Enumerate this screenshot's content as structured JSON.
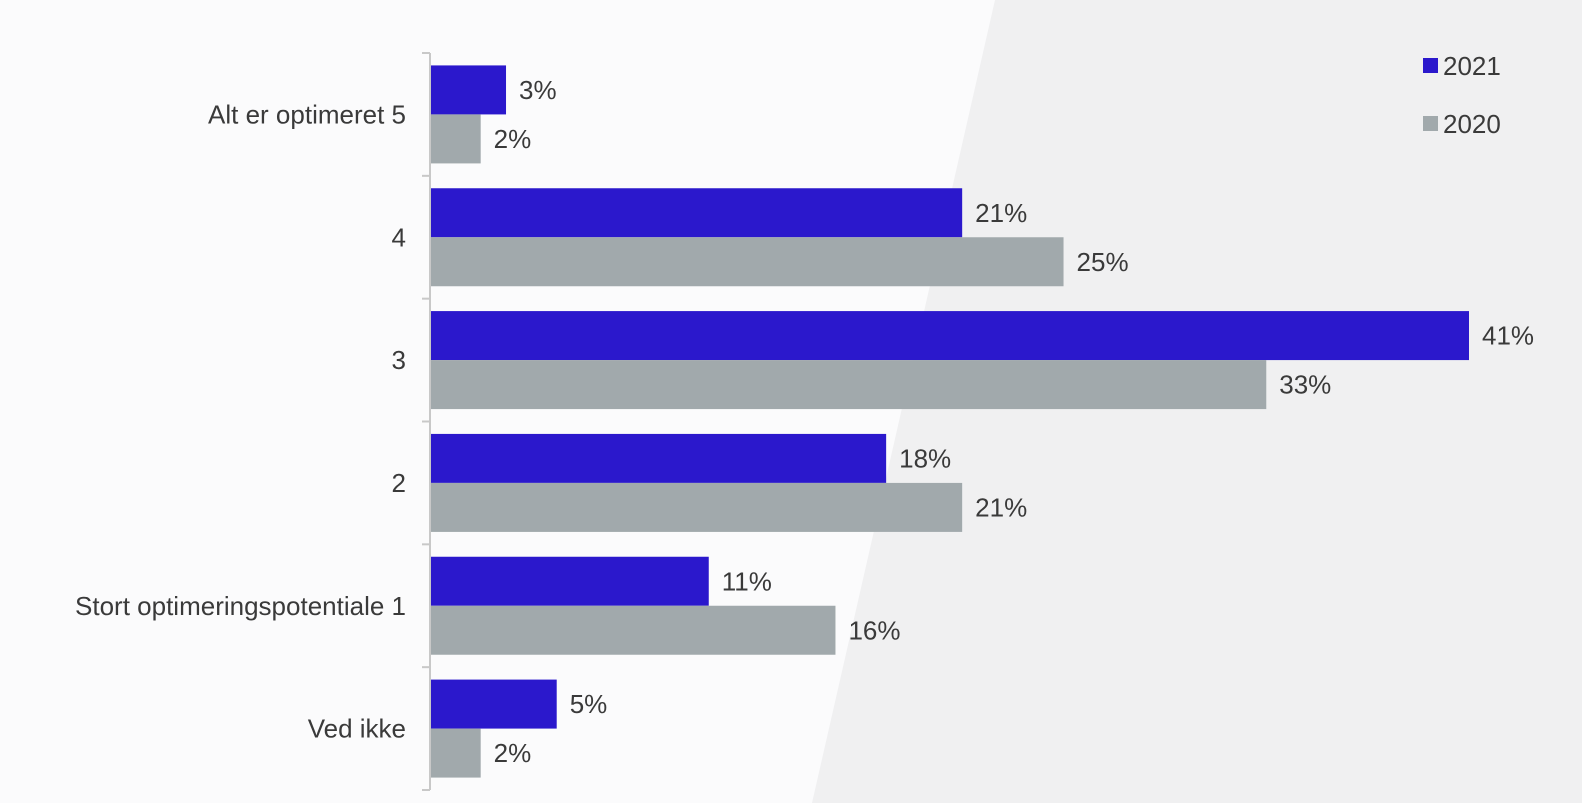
{
  "chart_data": {
    "type": "bar",
    "orientation": "horizontal",
    "categories": [
      "Alt er optimeret 5",
      "4",
      "3",
      "2",
      "Stort optimeringspotentiale 1",
      "Ved ikke"
    ],
    "series": [
      {
        "name": "2021",
        "color": "#2b18cc",
        "values": [
          3,
          21,
          41,
          18,
          11,
          5
        ],
        "labels": [
          "3%",
          "21%",
          "41%",
          "18%",
          "11%",
          "5%"
        ]
      },
      {
        "name": "2020",
        "color": "#a1a9ac",
        "values": [
          2,
          25,
          33,
          21,
          16,
          2
        ],
        "labels": [
          "2%",
          "25%",
          "33%",
          "21%",
          "16%",
          "2%"
        ]
      }
    ],
    "xlim": [
      0,
      41
    ],
    "grid": false,
    "legend_position": "top-right",
    "axis_color": "#c8c8c8",
    "background_color": "#fbfbfc",
    "background_wedge_color": "#f0f0f1"
  }
}
